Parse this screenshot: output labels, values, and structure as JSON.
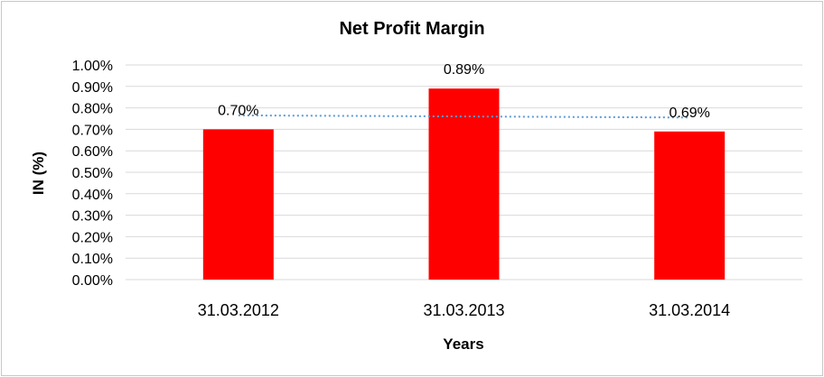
{
  "chart_data": {
    "type": "bar",
    "title": "Net Profit Margin",
    "xlabel": "Years",
    "ylabel": "IN (%)",
    "categories": [
      "31.03.2012",
      "31.03.2013",
      "31.03.2014"
    ],
    "values": [
      0.7,
      0.89,
      0.69
    ],
    "data_labels": [
      "0.70%",
      "0.89%",
      "0.69%"
    ],
    "ylim": [
      0,
      1.0
    ],
    "y_ticks": [
      "0.00%",
      "0.10%",
      "0.20%",
      "0.30%",
      "0.40%",
      "0.50%",
      "0.60%",
      "0.70%",
      "0.80%",
      "0.90%",
      "1.00%"
    ],
    "y_tick_values": [
      0,
      0.1,
      0.2,
      0.3,
      0.4,
      0.5,
      0.6,
      0.7,
      0.8,
      0.9,
      1.0
    ],
    "trendline": {
      "type": "linear",
      "style": "dotted",
      "color": "#5b9bd5"
    },
    "grid": true,
    "bar_color": "#ff0000",
    "grid_color": "#d9d9d9"
  }
}
